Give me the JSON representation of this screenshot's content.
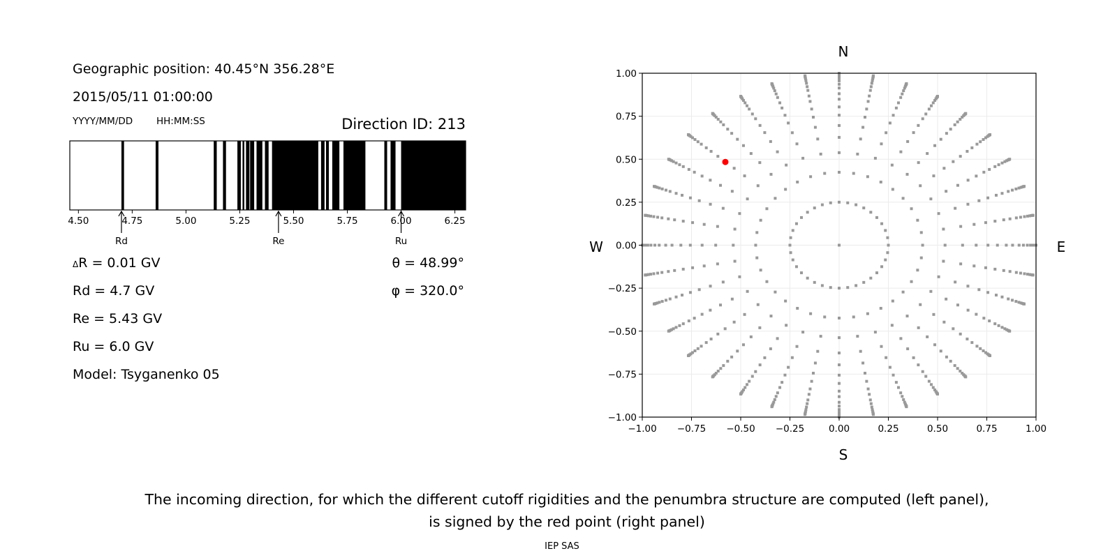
{
  "info": {
    "geo_position": "Geographic position: 40.45°N 356.28°E",
    "datetime": "2015/05/11 01:00:00",
    "date_format": "YYYY/MM/DD",
    "time_format": "HH:MM:SS",
    "direction_id": "Direction ID: 213",
    "delta_r_symbol": "Δ",
    "delta_r": "R = 0.01 GV",
    "rd": "Rd = 4.7 GV",
    "re": "Re = 5.43 GV",
    "ru": "Ru = 6.0 GV",
    "model": "Model: Tsyganenko 05",
    "theta": "θ = 48.99°",
    "phi": "φ = 320.0°"
  },
  "caption": {
    "line1": "The incoming direction, for which the different cutoff rigidities and the penumbra structure are computed (left panel),",
    "line2": "is signed by the red point (right panel)",
    "credit": "IEP SAS"
  },
  "chart_data": [
    {
      "type": "bar",
      "description_role": "penumbra",
      "xlim": [
        4.46,
        6.3
      ],
      "xticks": [
        4.5,
        4.75,
        5.0,
        5.25,
        5.5,
        5.75,
        6.0,
        6.25
      ],
      "xtick_labels": [
        "4.50",
        "4.75",
        "5.00",
        "5.25",
        "5.50",
        "5.75",
        "6.00",
        "6.25"
      ],
      "forbidden_color": "#000000",
      "allowed_color": "#ffffff",
      "black_intervals": [
        [
          4.7,
          4.712
        ],
        [
          4.859,
          4.872
        ],
        [
          5.129,
          5.143
        ],
        [
          5.172,
          5.186
        ],
        [
          5.239,
          5.255
        ],
        [
          5.263,
          5.271
        ],
        [
          5.279,
          5.295
        ],
        [
          5.298,
          5.317
        ],
        [
          5.328,
          5.355
        ],
        [
          5.367,
          5.384
        ],
        [
          5.4,
          5.615
        ],
        [
          5.628,
          5.644
        ],
        [
          5.651,
          5.664
        ],
        [
          5.68,
          5.713
        ],
        [
          5.732,
          5.834
        ],
        [
          5.922,
          5.935
        ],
        [
          5.951,
          5.974
        ],
        [
          6.0,
          6.3
        ]
      ],
      "markers": [
        {
          "label": "Rd",
          "value": 4.7
        },
        {
          "label": "Re",
          "value": 5.43
        },
        {
          "label": "Ru",
          "value": 6.0
        }
      ]
    },
    {
      "type": "scatter",
      "xlim": [
        -1,
        1
      ],
      "ylim": [
        -1,
        1
      ],
      "grid": true,
      "xticks": [
        "-1.00",
        "-0.75",
        "-0.50",
        "-0.25",
        "0.00",
        "0.25",
        "0.50",
        "0.75",
        "1.00"
      ],
      "yticks": [
        "-1.00",
        "-0.75",
        "-0.50",
        "-0.25",
        "0.00",
        "0.25",
        "0.50",
        "0.75",
        "1.00"
      ],
      "compass": {
        "top": "N",
        "bottom": "S",
        "left": "W",
        "right": "E"
      },
      "point_color": "#999999",
      "highlight_color": "#ff0000",
      "center_point": [
        0,
        0
      ],
      "spoke_azimuths_deg": [
        0,
        10,
        20,
        30,
        40,
        50,
        60,
        70,
        80,
        90,
        100,
        110,
        120,
        130,
        140,
        150,
        160,
        170,
        180,
        190,
        200,
        210,
        220,
        230,
        240,
        250,
        260,
        270,
        280,
        290,
        300,
        310,
        320,
        330,
        340,
        350
      ],
      "spoke_radii": [
        0.25,
        0.424,
        0.538,
        0.627,
        0.696,
        0.756,
        0.804,
        0.849,
        0.881,
        0.914,
        0.936,
        0.956,
        0.972,
        0.983,
        0.991,
        0.996,
        0.999,
        1.0
      ],
      "highlight_point": [
        -0.578,
        0.484
      ]
    }
  ]
}
